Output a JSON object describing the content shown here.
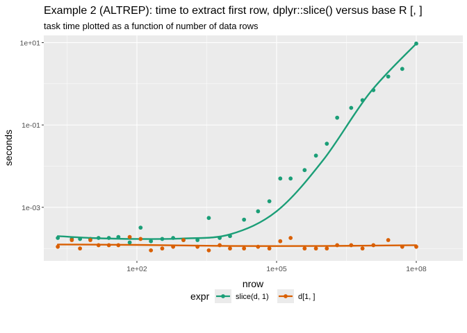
{
  "chart_data": {
    "type": "scatter",
    "title": "Example 2 (ALTREP): time to extract first row, dplyr::slice() versus base R [, ]",
    "subtitle": "task time plotted as a function of number of data rows",
    "xlabel": "nrow",
    "ylabel": "seconds",
    "x_scale": "log10",
    "y_scale": "log10",
    "xlim": [
      1,
      1000000000
    ],
    "ylim": [
      5e-05,
      15
    ],
    "x_ticks": [
      {
        "value": 100,
        "label": "1e+02"
      },
      {
        "value": 100000,
        "label": "1e+05"
      },
      {
        "value": 100000000,
        "label": "1e+08"
      }
    ],
    "y_ticks": [
      {
        "value": 0.001,
        "label": "1e-03"
      },
      {
        "value": 0.1,
        "label": "1e-01"
      },
      {
        "value": 10,
        "label": "1e+01"
      }
    ],
    "legend_title": "expr",
    "legend_position": "bottom",
    "series": [
      {
        "name": "slice(d, 1)",
        "color": "#1b9e77",
        "points": [
          [
            2,
            0.00018
          ],
          [
            4,
            0.00017
          ],
          [
            6,
            0.00017
          ],
          [
            10,
            0.00017
          ],
          [
            15,
            0.00018
          ],
          [
            25,
            0.00018
          ],
          [
            40,
            0.00019
          ],
          [
            70,
            0.00014
          ],
          [
            120,
            0.00032
          ],
          [
            200,
            0.00015
          ],
          [
            350,
            0.00017
          ],
          [
            600,
            0.00018
          ],
          [
            1000,
            0.00016
          ],
          [
            2000,
            0.00016
          ],
          [
            3500,
            0.00055
          ],
          [
            6000,
            0.00018
          ],
          [
            10000,
            0.0002
          ],
          [
            20000,
            0.0005
          ],
          [
            40000,
            0.0008
          ],
          [
            70000,
            0.0014
          ],
          [
            120000,
            0.005
          ],
          [
            200000,
            0.005
          ],
          [
            400000,
            0.008
          ],
          [
            700000,
            0.018
          ],
          [
            1200000,
            0.035
          ],
          [
            2000000,
            0.15
          ],
          [
            4000000,
            0.26
          ],
          [
            7000000,
            0.4
          ],
          [
            12000000,
            0.7
          ],
          [
            25000000,
            1.5
          ],
          [
            50000000,
            2.3
          ],
          [
            100000000,
            9.5
          ]
        ],
        "fit": [
          [
            2,
            0.0002
          ],
          [
            10,
            0.00018
          ],
          [
            100,
            0.00017
          ],
          [
            1000,
            0.000175
          ],
          [
            10000,
            0.00022
          ],
          [
            100000,
            0.0008
          ],
          [
            1000000,
            0.014
          ],
          [
            10000000,
            0.6
          ],
          [
            100000000,
            9.5
          ]
        ]
      },
      {
        "name": "d[1, ]",
        "color": "#d95f02",
        "points": [
          [
            2,
            0.00011
          ],
          [
            4,
            0.00016
          ],
          [
            6,
            0.0001
          ],
          [
            10,
            0.00016
          ],
          [
            15,
            0.00012
          ],
          [
            25,
            0.00012
          ],
          [
            40,
            0.00012
          ],
          [
            70,
            0.00019
          ],
          [
            120,
            0.00017
          ],
          [
            200,
            9e-05
          ],
          [
            350,
            0.0001
          ],
          [
            600,
            0.00011
          ],
          [
            1000,
            0.00016
          ],
          [
            2000,
            0.00011
          ],
          [
            3500,
            9e-05
          ],
          [
            6000,
            0.00012
          ],
          [
            10000,
            0.0001
          ],
          [
            20000,
            0.0001
          ],
          [
            40000,
            0.00011
          ],
          [
            70000,
            0.0001
          ],
          [
            120000,
            0.00015
          ],
          [
            200000,
            0.00018
          ],
          [
            400000,
            0.0001
          ],
          [
            700000,
            0.0001
          ],
          [
            1200000,
            0.0001
          ],
          [
            2000000,
            0.00012
          ],
          [
            4000000,
            0.00012
          ],
          [
            7000000,
            0.0001
          ],
          [
            12000000,
            0.00012
          ],
          [
            25000000,
            0.00016
          ],
          [
            50000000,
            0.00011
          ],
          [
            100000000,
            0.00011
          ]
        ],
        "fit": [
          [
            2,
            0.000125
          ],
          [
            100,
            0.000122
          ],
          [
            10000,
            0.000115
          ],
          [
            1000000,
            0.000115
          ],
          [
            100000000,
            0.00012
          ]
        ]
      }
    ]
  }
}
